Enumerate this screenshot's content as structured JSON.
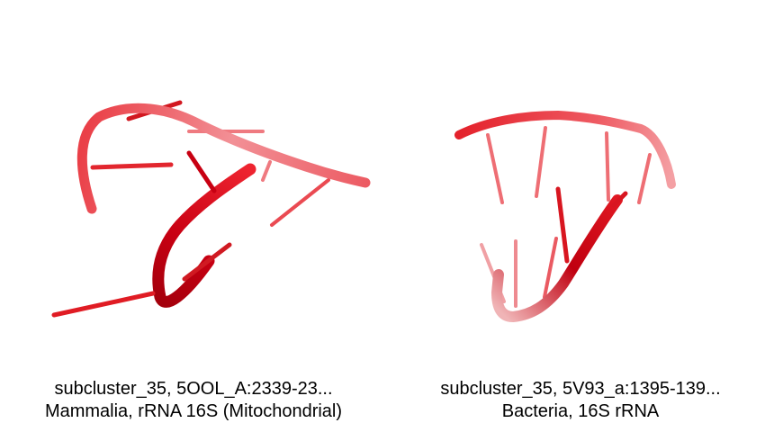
{
  "panels": [
    {
      "caption_line1": "subcluster_35, 5OOL_A:2339-23...",
      "caption_line2": "Mammalia, rRNA 16S (Mitochondrial)"
    },
    {
      "caption_line1": "subcluster_35, 5V93_a:1395-139...",
      "caption_line2": "Bacteria, 16S rRNA"
    }
  ],
  "colors": {
    "backbone_near": "#c80010",
    "backbone_mid": "#e8333d",
    "backbone_far": "#f49a9e",
    "stick": "#e82a30"
  }
}
